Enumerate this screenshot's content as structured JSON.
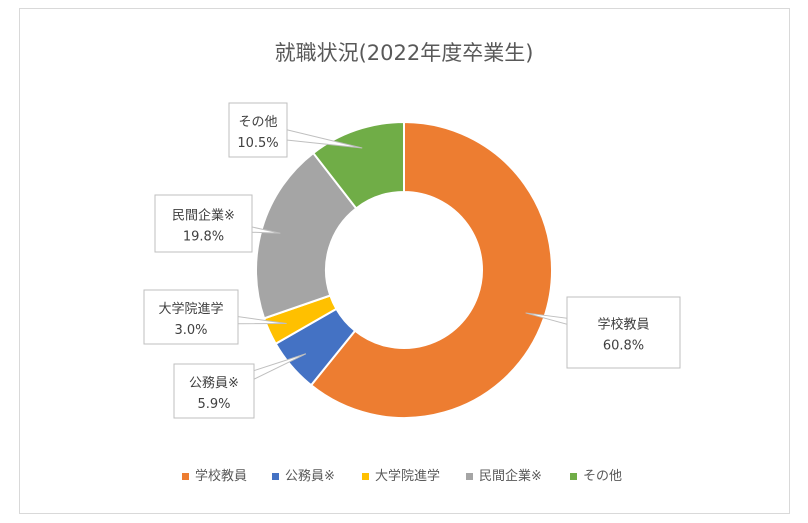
{
  "chart_data": {
    "type": "pie",
    "subtype": "donut",
    "title": "就職状況(2022年度卒業生)",
    "categories": [
      "学校教員",
      "公務員※",
      "大学院進学",
      "民間企業※",
      "その他"
    ],
    "values": [
      60.8,
      5.9,
      3.0,
      19.8,
      10.5
    ],
    "value_labels": [
      "60.8%",
      "5.9%",
      "3.0%",
      "19.8%",
      "10.5%"
    ],
    "unit": "%",
    "colors": [
      "#ED7D31",
      "#4472C4",
      "#FFC000",
      "#A5A5A5",
      "#70AD47"
    ],
    "legend_position": "bottom",
    "start_angle_deg": 0,
    "direction": "clockwise"
  }
}
